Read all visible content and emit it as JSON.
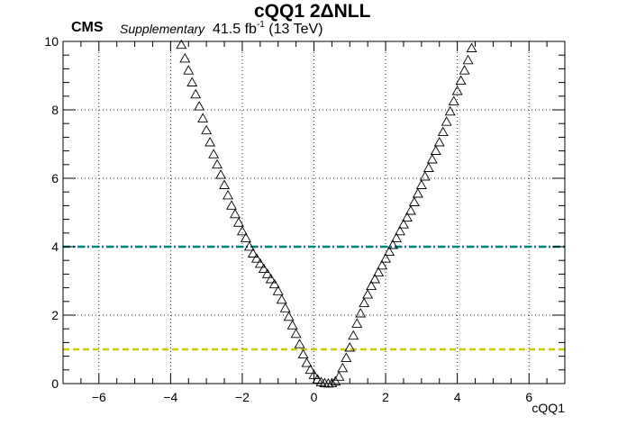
{
  "header": {
    "title": "cQQ1 2ΔNLL",
    "experiment": "CMS",
    "status": "Supplementary",
    "lumi_value": "41.5 fb",
    "lumi_exp": "-1",
    "energy": "(13 TeV)"
  },
  "chart_data": {
    "type": "scatter",
    "title": "cQQ1 2ΔNLL",
    "xlabel": "cQQ1",
    "ylabel": "",
    "xlim": [
      -7,
      7
    ],
    "ylim": [
      0,
      10
    ],
    "xticks": [
      -6,
      -4,
      -2,
      0,
      2,
      4,
      6
    ],
    "yticks": [
      0,
      2,
      4,
      6,
      8,
      10
    ],
    "xtick_labels": [
      "−6",
      "−4",
      "−2",
      "0",
      "2",
      "4",
      "6"
    ],
    "ytick_labels": [
      "0",
      "2",
      "4",
      "6",
      "8",
      "10"
    ],
    "grid": true,
    "marker": "open-triangle",
    "marker_color": "#000000",
    "reference_lines": [
      {
        "y": 1,
        "color": "#cccc00",
        "style": "dashed"
      },
      {
        "y": 4,
        "color": "#008080",
        "style": "dash-dot"
      }
    ],
    "series": [
      {
        "x": [
          -3.7,
          -3.6,
          -3.5,
          -3.4,
          -3.3,
          -3.2,
          -3.1,
          -3.0,
          -2.9,
          -2.8,
          -2.7,
          -2.6,
          -2.5,
          -2.4,
          -2.3,
          -2.2,
          -2.1,
          -2.0,
          -1.9,
          -1.8,
          -1.7,
          -1.6,
          -1.5,
          -1.4,
          -1.3,
          -1.2,
          -1.1,
          -1.0,
          -0.9,
          -0.8,
          -0.7,
          -0.6,
          -0.5,
          -0.4,
          -0.3,
          -0.2,
          -0.1,
          0.0,
          0.1,
          0.2,
          0.3,
          0.4,
          0.5,
          0.6,
          0.7,
          0.8,
          0.9,
          1.0,
          1.1,
          1.2,
          1.3,
          1.4,
          1.5,
          1.6,
          1.7,
          1.8,
          1.9,
          2.0,
          2.1,
          2.2,
          2.3,
          2.4,
          2.5,
          2.6,
          2.7,
          2.8,
          2.9,
          3.0,
          3.1,
          3.2,
          3.3,
          3.4,
          3.5,
          3.6,
          3.7,
          3.8,
          3.9,
          4.0,
          4.1,
          4.2,
          4.3,
          4.4
        ],
        "y": [
          9.9,
          9.5,
          9.15,
          8.8,
          8.45,
          8.1,
          7.75,
          7.4,
          7.05,
          6.7,
          6.4,
          6.1,
          5.8,
          5.5,
          5.2,
          4.95,
          4.7,
          4.45,
          4.25,
          4.0,
          3.8,
          3.65,
          3.5,
          3.35,
          3.2,
          3.05,
          2.9,
          2.7,
          2.45,
          2.2,
          1.95,
          1.7,
          1.45,
          1.15,
          0.85,
          0.6,
          0.4,
          0.25,
          0.12,
          0.04,
          0.01,
          0.0,
          0.01,
          0.06,
          0.2,
          0.45,
          0.75,
          1.05,
          1.4,
          1.75,
          2.05,
          2.35,
          2.6,
          2.85,
          3.05,
          3.25,
          3.45,
          3.65,
          3.85,
          4.05,
          4.25,
          4.45,
          4.65,
          4.85,
          5.05,
          5.3,
          5.55,
          5.8,
          6.05,
          6.3,
          6.55,
          6.8,
          7.05,
          7.35,
          7.65,
          7.95,
          8.25,
          8.55,
          8.85,
          9.15,
          9.45,
          9.8
        ]
      }
    ]
  }
}
